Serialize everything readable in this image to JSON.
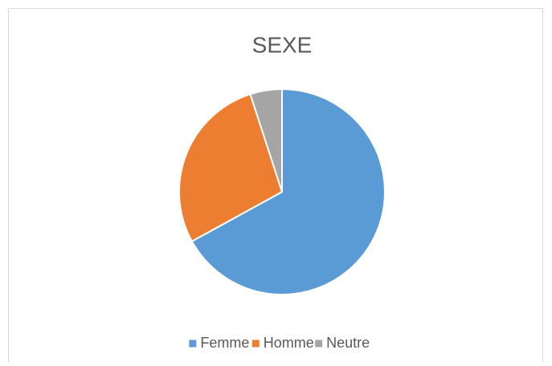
{
  "chart_data": {
    "type": "pie",
    "title": "SEXE",
    "categories": [
      "Femme",
      "Homme",
      "Neutre"
    ],
    "values": [
      67,
      28,
      5
    ],
    "colors": [
      "#5b9bd5",
      "#ed7d31",
      "#a5a5a5"
    ],
    "legend": "bottom"
  }
}
